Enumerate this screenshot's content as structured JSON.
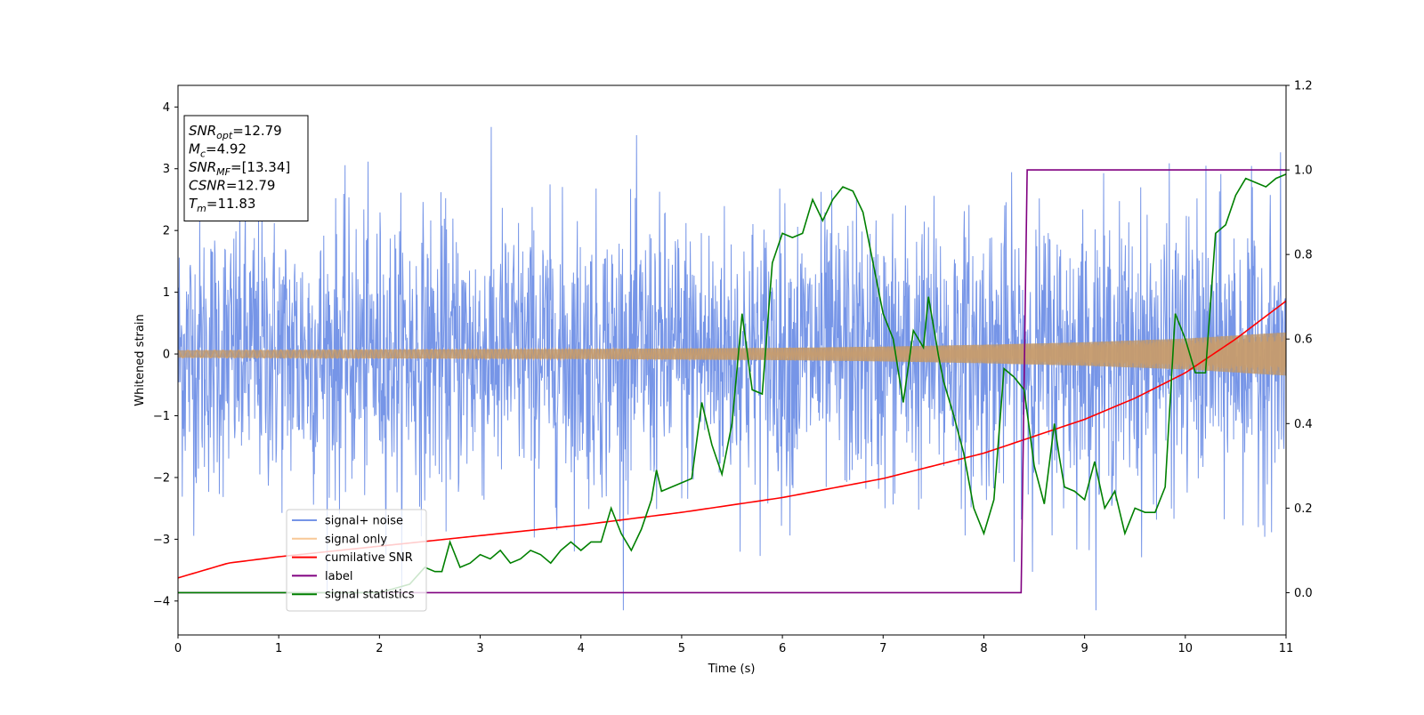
{
  "chart_data": {
    "type": "line",
    "xlabel": "Time (s)",
    "ylabel_left": "Whitened strain",
    "ylabel_right": "",
    "xlim": [
      0,
      11
    ],
    "ylim_left": [
      -4.55,
      4.35
    ],
    "ylim_right": [
      -0.1,
      1.2
    ],
    "x_ticks": [
      0,
      1,
      2,
      3,
      4,
      5,
      6,
      7,
      8,
      9,
      10,
      11
    ],
    "y_ticks_left": [
      -4,
      -3,
      -2,
      -1,
      0,
      1,
      2,
      3,
      4
    ],
    "y_ticks_right": [
      0.0,
      0.2,
      0.4,
      0.6,
      0.8,
      1.0,
      1.2
    ],
    "grid": false,
    "legend_position": "lower-left",
    "info_box": {
      "position": "top-left",
      "lines": [
        {
          "base": "SNR",
          "sub": "opt",
          "rest": "=12.79"
        },
        {
          "base": "M",
          "sub": "c",
          "rest": "=4.92"
        },
        {
          "base": "SNR",
          "sub": "MF",
          "rest": "=[13.34]"
        },
        {
          "base": "CSNR",
          "sub": "",
          "rest": "=12.79"
        },
        {
          "base": "T",
          "sub": "m",
          "rest": "=11.83"
        }
      ]
    },
    "series": [
      {
        "name": "signal+ noise",
        "axis": "left",
        "color": "#6f8fe6",
        "style": "noise",
        "noise_band_95": [
          -2.2,
          2.2
        ],
        "max_peak": 3.98,
        "min_peak": -4.15
      },
      {
        "name": "signal only",
        "axis": "left",
        "color": "#f5b06a",
        "style": "chirp",
        "envelope": {
          "x": [
            0,
            2,
            4,
            6,
            7,
            8,
            9,
            10,
            11
          ],
          "y": [
            0.06,
            0.07,
            0.08,
            0.1,
            0.12,
            0.15,
            0.19,
            0.25,
            0.35
          ]
        }
      },
      {
        "name": "cumilative SNR",
        "axis": "right",
        "color": "#ff0000",
        "style": "line",
        "x": [
          0,
          0.5,
          1,
          2,
          3,
          4,
          5,
          6,
          7,
          8,
          8.5,
          9,
          9.5,
          10,
          10.5,
          11
        ],
        "y": [
          0.035,
          0.07,
          0.085,
          0.11,
          0.135,
          0.16,
          0.19,
          0.225,
          0.27,
          0.33,
          0.37,
          0.41,
          0.46,
          0.52,
          0.6,
          0.69
        ]
      },
      {
        "name": "label",
        "axis": "right",
        "color": "#800080",
        "style": "line",
        "x": [
          0,
          8.37,
          8.43,
          11
        ],
        "y": [
          0.0,
          0.0,
          1.0,
          1.0
        ]
      },
      {
        "name": "signal statistics",
        "axis": "right",
        "color": "#008000",
        "style": "line",
        "x": [
          0,
          0.5,
          1,
          1.5,
          2,
          2.3,
          2.45,
          2.55,
          2.62,
          2.7,
          2.8,
          2.9,
          3.0,
          3.1,
          3.2,
          3.3,
          3.4,
          3.5,
          3.6,
          3.7,
          3.8,
          3.9,
          4.0,
          4.1,
          4.2,
          4.3,
          4.4,
          4.5,
          4.6,
          4.7,
          4.75,
          4.8,
          4.9,
          5.0,
          5.1,
          5.2,
          5.3,
          5.4,
          5.5,
          5.6,
          5.7,
          5.8,
          5.9,
          6.0,
          6.1,
          6.2,
          6.3,
          6.4,
          6.5,
          6.6,
          6.7,
          6.8,
          6.9,
          7.0,
          7.1,
          7.2,
          7.3,
          7.4,
          7.45,
          7.55,
          7.6,
          7.7,
          7.8,
          7.9,
          8.0,
          8.1,
          8.2,
          8.3,
          8.4,
          8.5,
          8.6,
          8.7,
          8.75,
          8.8,
          8.9,
          9.0,
          9.1,
          9.2,
          9.3,
          9.4,
          9.5,
          9.6,
          9.7,
          9.8,
          9.9,
          10.0,
          10.1,
          10.2,
          10.3,
          10.4,
          10.5,
          10.6,
          10.7,
          10.8,
          10.9,
          11.0
        ],
        "y": [
          0.0,
          0.0,
          0.0,
          0.0,
          0.0,
          0.02,
          0.06,
          0.05,
          0.05,
          0.12,
          0.06,
          0.07,
          0.09,
          0.08,
          0.1,
          0.07,
          0.08,
          0.1,
          0.09,
          0.07,
          0.1,
          0.12,
          0.1,
          0.12,
          0.12,
          0.2,
          0.14,
          0.1,
          0.15,
          0.22,
          0.29,
          0.24,
          0.25,
          0.26,
          0.27,
          0.45,
          0.35,
          0.28,
          0.4,
          0.66,
          0.48,
          0.47,
          0.78,
          0.85,
          0.84,
          0.85,
          0.93,
          0.88,
          0.93,
          0.96,
          0.95,
          0.9,
          0.78,
          0.66,
          0.6,
          0.45,
          0.62,
          0.58,
          0.7,
          0.56,
          0.5,
          0.42,
          0.33,
          0.2,
          0.14,
          0.22,
          0.53,
          0.51,
          0.48,
          0.3,
          0.21,
          0.4,
          0.32,
          0.25,
          0.24,
          0.22,
          0.31,
          0.2,
          0.24,
          0.14,
          0.2,
          0.19,
          0.19,
          0.25,
          0.66,
          0.6,
          0.52,
          0.52,
          0.85,
          0.87,
          0.94,
          0.98,
          0.97,
          0.96,
          0.98,
          0.99
        ]
      }
    ]
  }
}
